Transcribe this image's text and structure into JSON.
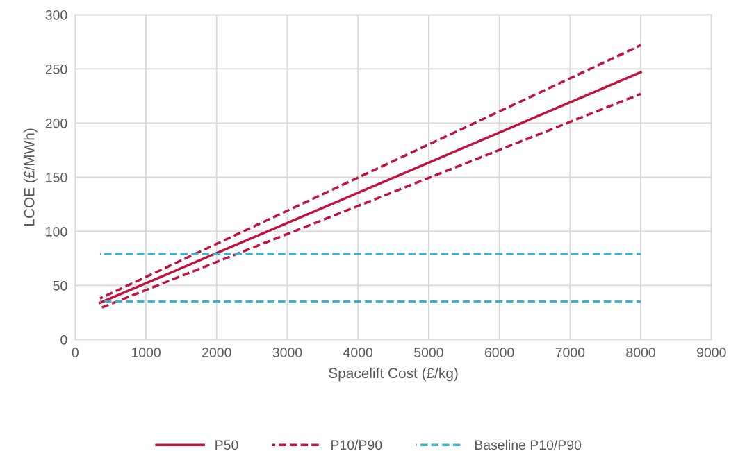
{
  "chart_data": {
    "type": "line",
    "xlabel": "Spacelift Cost (£/kg)",
    "ylabel": "LCOE (£/MWh)",
    "xlim": [
      0,
      9000
    ],
    "xticks": [
      0,
      1000,
      2000,
      3000,
      4000,
      5000,
      6000,
      7000,
      8000,
      9000
    ],
    "ylim": [
      0,
      300
    ],
    "yticks": [
      0,
      50,
      100,
      150,
      200,
      250,
      300
    ],
    "grid": true,
    "legend": "bottom",
    "marker": "none",
    "x": [
      350,
      8000
    ],
    "series": [
      {
        "name": "P50",
        "color": "#c0143c",
        "line_style": "solid",
        "values": [
          34,
          247
        ]
      },
      {
        "name": "P10/P90",
        "color": "#c0143c",
        "line_style": "dashed",
        "values": [
          38,
          272
        ]
      },
      {
        "color": "#c0143c",
        "line_style": "dashed",
        "values": [
          29,
          227
        ]
      },
      {
        "name": "Baseline P10/P90",
        "color": "#3bb3c9",
        "line_style": "dashed",
        "values": [
          79,
          79
        ]
      },
      {
        "color": "#3bb3c9",
        "line_style": "dashed",
        "values": [
          35,
          35
        ]
      }
    ]
  }
}
